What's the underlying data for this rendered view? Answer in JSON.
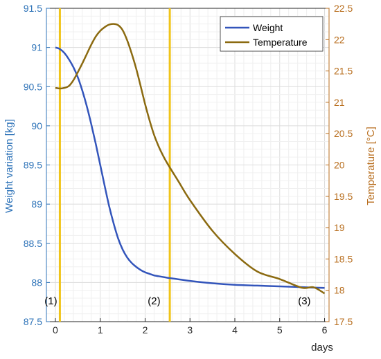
{
  "chart_data": {
    "type": "line",
    "title": "",
    "xlabel": "days",
    "ylabel_left": "Weight variation [kg]",
    "ylabel_right": "Temperature [°C]",
    "xlim": [
      -0.2,
      6.1
    ],
    "ylim_left": [
      87.5,
      91.5
    ],
    "ylim_right": [
      17.5,
      22.5
    ],
    "x_ticks": [
      0,
      1,
      2,
      3,
      4,
      5,
      6
    ],
    "y_ticks_left": [
      87.5,
      88,
      88.5,
      89,
      89.5,
      90,
      90.5,
      91,
      91.5
    ],
    "y_ticks_right": [
      17.5,
      18,
      18.5,
      19,
      19.5,
      20,
      20.5,
      21,
      21.5,
      22,
      22.5
    ],
    "grid": true,
    "legend_position": "top-right",
    "colors": {
      "weight": "#3355bb",
      "temperature": "#8b6a10",
      "marker_lines": "#f0c419",
      "left_axis": "#2e73b8",
      "right_axis": "#b86e1e"
    },
    "series": [
      {
        "name": "Weight",
        "axis": "left",
        "x": [
          0,
          0.1,
          0.2,
          0.3,
          0.4,
          0.5,
          0.6,
          0.7,
          0.8,
          0.9,
          1.0,
          1.1,
          1.2,
          1.3,
          1.4,
          1.5,
          1.6,
          1.7,
          1.8,
          1.9,
          2.0,
          2.1,
          2.2,
          2.3,
          2.4,
          2.5,
          2.75,
          3.0,
          3.5,
          4.0,
          4.5,
          5.0,
          5.5,
          6.0
        ],
        "values": [
          91.0,
          90.98,
          90.93,
          90.85,
          90.75,
          90.62,
          90.45,
          90.25,
          90.02,
          89.77,
          89.5,
          89.23,
          88.97,
          88.75,
          88.56,
          88.42,
          88.32,
          88.25,
          88.2,
          88.16,
          88.13,
          88.11,
          88.09,
          88.08,
          88.07,
          88.06,
          88.04,
          88.02,
          87.99,
          87.97,
          87.96,
          87.95,
          87.94,
          87.93
        ]
      },
      {
        "name": "Temperature",
        "axis": "right",
        "x": [
          0,
          0.1,
          0.2,
          0.3,
          0.4,
          0.5,
          0.6,
          0.7,
          0.8,
          0.9,
          1.0,
          1.1,
          1.2,
          1.3,
          1.4,
          1.5,
          1.6,
          1.7,
          1.8,
          1.9,
          2.0,
          2.1,
          2.2,
          2.3,
          2.4,
          2.5,
          2.75,
          3.0,
          3.5,
          4.0,
          4.5,
          5.0,
          5.5,
          5.75,
          6.0
        ],
        "values": [
          21.23,
          21.22,
          21.23,
          21.26,
          21.35,
          21.48,
          21.62,
          21.77,
          21.92,
          22.05,
          22.14,
          22.2,
          22.24,
          22.25,
          22.23,
          22.15,
          21.99,
          21.78,
          21.54,
          21.26,
          20.97,
          20.71,
          20.48,
          20.3,
          20.15,
          20.02,
          19.73,
          19.44,
          18.95,
          18.58,
          18.3,
          18.18,
          18.04,
          18.05,
          17.95
        ]
      }
    ],
    "vertical_lines": [
      0.1,
      2.55
    ],
    "annotations": [
      {
        "text": "(1)",
        "x": -0.1,
        "y": 87.72
      },
      {
        "text": "(2)",
        "x": 2.2,
        "y": 87.72
      },
      {
        "text": "(3)",
        "x": 5.55,
        "y": 87.72
      }
    ]
  }
}
